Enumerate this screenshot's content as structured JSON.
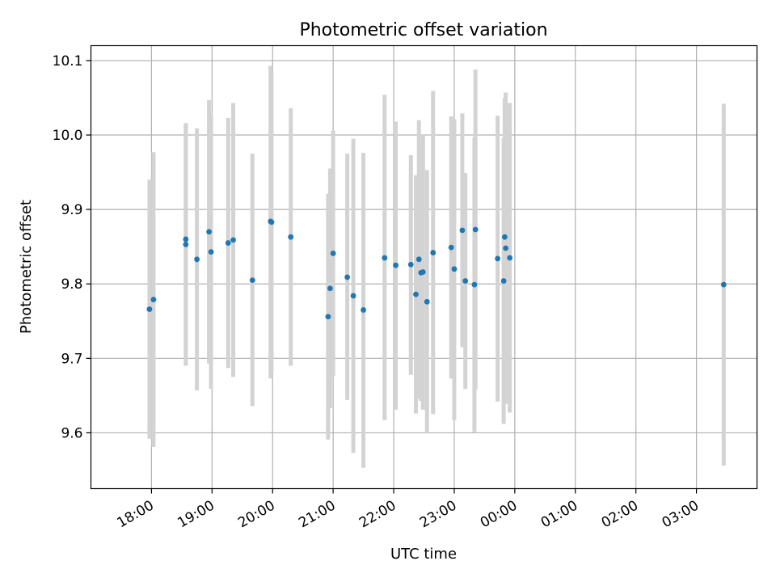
{
  "chart_data": {
    "type": "scatter",
    "title": "Photometric offset variation",
    "xlabel": "UTC time",
    "ylabel": "Photometric offset",
    "x_unit": "minutes after 00:00 UTC of first night; values past 1440 are next day",
    "xlim": [
      1020,
      1680
    ],
    "ylim": [
      9.525,
      10.12
    ],
    "xticks": [
      {
        "value": 1080,
        "label": "18:00"
      },
      {
        "value": 1140,
        "label": "19:00"
      },
      {
        "value": 1200,
        "label": "20:00"
      },
      {
        "value": 1260,
        "label": "21:00"
      },
      {
        "value": 1320,
        "label": "22:00"
      },
      {
        "value": 1380,
        "label": "23:00"
      },
      {
        "value": 1440,
        "label": "00:00"
      },
      {
        "value": 1500,
        "label": "01:00"
      },
      {
        "value": 1560,
        "label": "02:00"
      },
      {
        "value": 1620,
        "label": "03:00"
      }
    ],
    "yticks": [
      {
        "value": 9.6,
        "label": "9.6"
      },
      {
        "value": 9.7,
        "label": "9.7"
      },
      {
        "value": 9.8,
        "label": "9.8"
      },
      {
        "value": 9.9,
        "label": "9.9"
      },
      {
        "value": 10.0,
        "label": "10.0"
      },
      {
        "value": 10.1,
        "label": "10.1"
      }
    ],
    "grid": true,
    "point_color": "#1f77b4",
    "errorbar_color": "#d3d3d3",
    "points": [
      {
        "x": 1078,
        "y": 9.766,
        "low": 9.592,
        "high": 9.94
      },
      {
        "x": 1082,
        "y": 9.779,
        "low": 9.581,
        "high": 9.977
      },
      {
        "x": 1114,
        "y": 9.86,
        "low": 9.705,
        "high": 10.015
      },
      {
        "x": 1114,
        "y": 9.853,
        "low": 9.69,
        "high": 10.016
      },
      {
        "x": 1125,
        "y": 9.833,
        "low": 9.657,
        "high": 10.009
      },
      {
        "x": 1137,
        "y": 9.87,
        "low": 9.693,
        "high": 10.047
      },
      {
        "x": 1139,
        "y": 9.843,
        "low": 9.659,
        "high": 10.027
      },
      {
        "x": 1156,
        "y": 9.855,
        "low": 9.687,
        "high": 10.023
      },
      {
        "x": 1161,
        "y": 9.859,
        "low": 9.675,
        "high": 10.043
      },
      {
        "x": 1180,
        "y": 9.805,
        "low": 9.636,
        "high": 9.975
      },
      {
        "x": 1198,
        "y": 9.884,
        "low": 9.673,
        "high": 10.093
      },
      {
        "x": 1199,
        "y": 9.883,
        "low": 9.681,
        "high": 10.085
      },
      {
        "x": 1218,
        "y": 9.863,
        "low": 9.69,
        "high": 10.036
      },
      {
        "x": 1255,
        "y": 9.756,
        "low": 9.591,
        "high": 9.921
      },
      {
        "x": 1257,
        "y": 9.794,
        "low": 9.633,
        "high": 9.955
      },
      {
        "x": 1260,
        "y": 9.841,
        "low": 9.676,
        "high": 10.006
      },
      {
        "x": 1274,
        "y": 9.809,
        "low": 9.644,
        "high": 9.975
      },
      {
        "x": 1280,
        "y": 9.784,
        "low": 9.573,
        "high": 9.995
      },
      {
        "x": 1290,
        "y": 9.765,
        "low": 9.553,
        "high": 9.976
      },
      {
        "x": 1311,
        "y": 9.835,
        "low": 9.617,
        "high": 10.054
      },
      {
        "x": 1322,
        "y": 9.825,
        "low": 9.631,
        "high": 10.018
      },
      {
        "x": 1337,
        "y": 9.826,
        "low": 9.678,
        "high": 9.973
      },
      {
        "x": 1342,
        "y": 9.786,
        "low": 9.626,
        "high": 9.946
      },
      {
        "x": 1345,
        "y": 9.833,
        "low": 9.646,
        "high": 10.02
      },
      {
        "x": 1347,
        "y": 9.815,
        "low": 9.643,
        "high": 9.987
      },
      {
        "x": 1349,
        "y": 9.816,
        "low": 9.631,
        "high": 10.001
      },
      {
        "x": 1353,
        "y": 9.776,
        "low": 9.599,
        "high": 9.953
      },
      {
        "x": 1359,
        "y": 9.842,
        "low": 9.625,
        "high": 10.059
      },
      {
        "x": 1377,
        "y": 9.849,
        "low": 9.673,
        "high": 10.025
      },
      {
        "x": 1380,
        "y": 9.82,
        "low": 9.617,
        "high": 10.021
      },
      {
        "x": 1388,
        "y": 9.872,
        "low": 9.715,
        "high": 10.029
      },
      {
        "x": 1391,
        "y": 9.804,
        "low": 9.659,
        "high": 9.949
      },
      {
        "x": 1401,
        "y": 9.873,
        "low": 9.658,
        "high": 10.088
      },
      {
        "x": 1400,
        "y": 9.799,
        "low": 9.601,
        "high": 9.997
      },
      {
        "x": 1423,
        "y": 9.834,
        "low": 9.642,
        "high": 10.026
      },
      {
        "x": 1429,
        "y": 9.804,
        "low": 9.612,
        "high": 9.996
      },
      {
        "x": 1430,
        "y": 9.863,
        "low": 9.676,
        "high": 10.05
      },
      {
        "x": 1431,
        "y": 9.848,
        "low": 9.639,
        "high": 10.057
      },
      {
        "x": 1435,
        "y": 9.835,
        "low": 9.627,
        "high": 10.043
      },
      {
        "x": 1647,
        "y": 9.799,
        "low": 9.556,
        "high": 10.042
      }
    ]
  }
}
